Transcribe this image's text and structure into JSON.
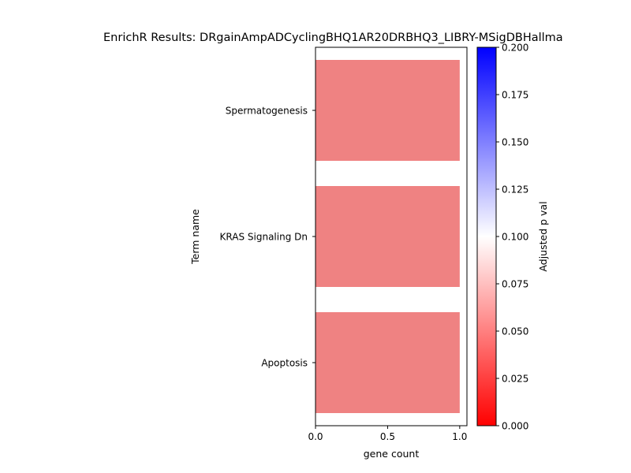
{
  "chart_data": {
    "type": "bar",
    "orientation": "horizontal",
    "title": "EnrichR Results: DRgainAmpADCyclingBHQ1AR20DRBHQ3_LIBRY-MSigDBHallma",
    "xlabel": "gene count",
    "ylabel": "Term name",
    "xlim": [
      0,
      1.05
    ],
    "x_ticks": [
      0.0,
      0.5,
      1.0
    ],
    "x_tick_labels": [
      "0.0",
      "0.5",
      "1.0"
    ],
    "categories": [
      "Spermatogenesis",
      "KRAS Signaling Dn",
      "Apoptosis"
    ],
    "values": [
      1,
      1,
      1
    ],
    "adjusted_p_values": [
      0.045,
      0.045,
      0.045
    ],
    "bar_color": "#ef8282",
    "colorbar": {
      "label": "Adjusted p val",
      "range": [
        0.0,
        0.2
      ],
      "ticks": [
        0.0,
        0.025,
        0.05,
        0.075,
        0.1,
        0.125,
        0.15,
        0.175,
        0.2
      ],
      "tick_labels": [
        "0.000",
        "0.025",
        "0.050",
        "0.075",
        "0.100",
        "0.125",
        "0.150",
        "0.175",
        "0.200"
      ],
      "colormap": [
        "#ff0000",
        "#ffffff",
        "#0000ff"
      ]
    },
    "grid": false,
    "legend": "none"
  }
}
